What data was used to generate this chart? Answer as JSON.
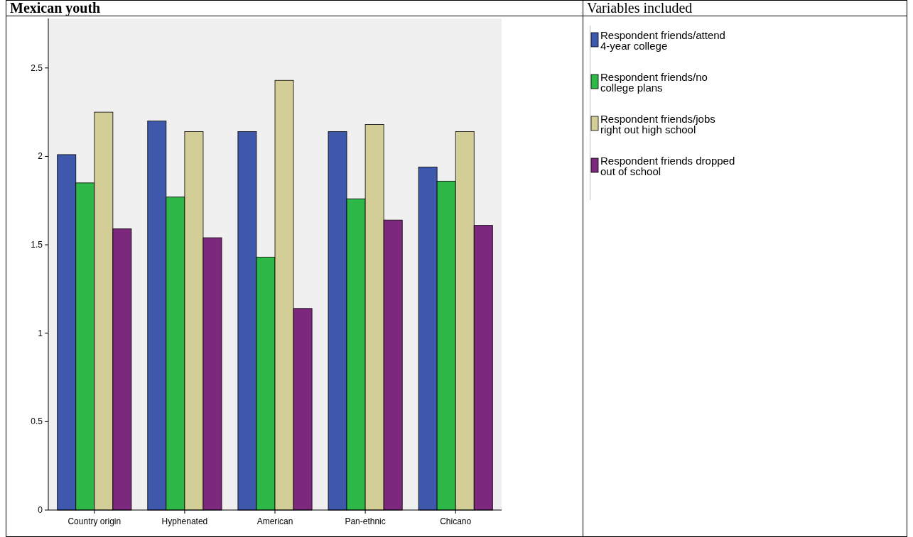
{
  "chart_data": {
    "type": "bar",
    "title": "Mexican youth",
    "legend_title": "Variables included",
    "categories": [
      "Country origin",
      "Hyphenated",
      "American",
      "Pan-ethnic",
      "Chicano"
    ],
    "series": [
      {
        "name": "Respondent friends/attend 4-year college",
        "color": "#3e58ac",
        "values": [
          2.01,
          2.2,
          2.14,
          2.14,
          1.94
        ]
      },
      {
        "name": "Respondent friends/no college plans",
        "color": "#2eb848",
        "values": [
          1.85,
          1.77,
          1.43,
          1.76,
          1.86
        ]
      },
      {
        "name": "Respondent friends/jobs right out high school",
        "color": "#d3ce97",
        "values": [
          2.25,
          2.14,
          2.43,
          2.18,
          2.14
        ]
      },
      {
        "name": "Respondent friends dropped out of school",
        "color": "#7c287d",
        "values": [
          1.59,
          1.54,
          1.14,
          1.64,
          1.61
        ]
      }
    ],
    "ylim": [
      0,
      2.78
    ],
    "yticks": [
      0,
      0.5,
      1,
      1.5,
      2,
      2.5
    ],
    "grid": false,
    "legend": "right"
  }
}
